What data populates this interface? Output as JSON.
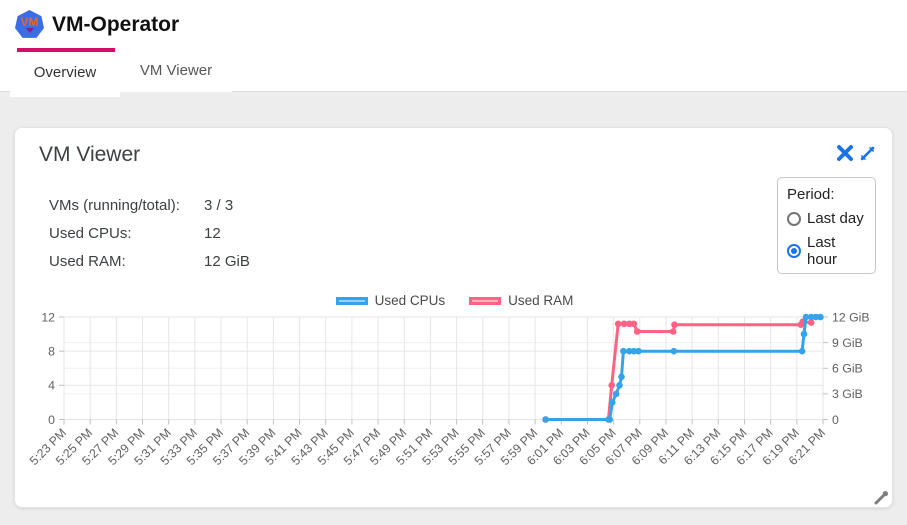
{
  "header": {
    "title": "VM-Operator",
    "logo_text": "VM"
  },
  "tabs": [
    {
      "label": "Overview",
      "active": true
    },
    {
      "label": "VM Viewer",
      "active": false
    }
  ],
  "card": {
    "title": "VM Viewer",
    "stats": [
      {
        "label": "VMs (running/total):",
        "value": "3 / 3"
      },
      {
        "label": "Used CPUs:",
        "value": "12"
      },
      {
        "label": "Used RAM:",
        "value": "12 GiB"
      }
    ],
    "period": {
      "label": "Period:",
      "options": [
        {
          "label": "Last day",
          "selected": false
        },
        {
          "label": "Last hour",
          "selected": true
        }
      ]
    }
  },
  "colors": {
    "accent_pink": "#cc1166",
    "icon_blue": "#1a73e8",
    "cpu_line": "#36a2eb",
    "cpu_fill": "#9ad0f5",
    "ram_line": "#ff6384",
    "ram_fill": "#ffb1c1",
    "grid": "#e6e6e6",
    "tick": "#c0c0c0",
    "axis_text": "#606060"
  },
  "chart_data": {
    "type": "line",
    "stepped": true,
    "title": "",
    "xlabel": "",
    "ylabel_left": "",
    "ylabel_right": "",
    "legend_position": "top",
    "grid": true,
    "x_labels": [
      "5:23 PM",
      "5:25 PM",
      "5:27 PM",
      "5:29 PM",
      "5:31 PM",
      "5:33 PM",
      "5:35 PM",
      "5:37 PM",
      "5:39 PM",
      "5:41 PM",
      "5:43 PM",
      "5:45 PM",
      "5:47 PM",
      "5:49 PM",
      "5:51 PM",
      "5:53 PM",
      "5:55 PM",
      "5:57 PM",
      "5:59 PM",
      "6:01 PM",
      "6:03 PM",
      "6:05 PM",
      "6:07 PM",
      "6:09 PM",
      "6:11 PM",
      "6:13 PM",
      "6:15 PM",
      "6:17 PM",
      "6:19 PM",
      "6:21 PM"
    ],
    "x_range_minutes": [
      0,
      58
    ],
    "y_left": {
      "ticks": [
        0,
        4,
        8,
        12
      ],
      "tick_labels": [
        "0",
        "4",
        "8",
        "12"
      ],
      "min": 0,
      "max": 12
    },
    "y_right": {
      "values": [
        0,
        3,
        6,
        9,
        12
      ],
      "tick_labels": [
        "0",
        "3 GiB",
        "6 GiB",
        "9 GiB",
        "12 GiB"
      ],
      "min": 0,
      "max": 12
    },
    "legend": [
      {
        "name": "Used CPUs",
        "line": "#36a2eb",
        "fill": "#9ad0f5"
      },
      {
        "name": "Used RAM",
        "line": "#ff6384",
        "fill": "#ffb1c1"
      }
    ],
    "series": [
      {
        "name": "Used RAM",
        "axis": "right",
        "unit": "GiB",
        "color": "#ff6384",
        "points": [
          [
            36.8,
            0
          ],
          [
            41.6,
            0
          ],
          [
            41.85,
            4
          ],
          [
            42.35,
            11.2
          ],
          [
            42.8,
            11.2
          ],
          [
            43.2,
            11.2
          ],
          [
            43.55,
            11.2
          ],
          [
            43.8,
            10.3
          ],
          [
            46.55,
            10.3
          ],
          [
            46.65,
            11.1
          ],
          [
            56.3,
            11.1
          ],
          [
            56.45,
            11.45
          ],
          [
            57.1,
            11.35
          ]
        ]
      },
      {
        "name": "Used CPUs",
        "axis": "left",
        "unit": "cores",
        "color": "#36a2eb",
        "points": [
          [
            36.8,
            0
          ],
          [
            41.7,
            0
          ],
          [
            41.9,
            2
          ],
          [
            42.2,
            3
          ],
          [
            42.45,
            4
          ],
          [
            42.6,
            5
          ],
          [
            42.75,
            8
          ],
          [
            43.2,
            8
          ],
          [
            43.55,
            8
          ],
          [
            43.9,
            8
          ],
          [
            46.6,
            8
          ],
          [
            56.4,
            8
          ],
          [
            56.55,
            10
          ],
          [
            56.7,
            12
          ],
          [
            57.1,
            12
          ],
          [
            57.45,
            12
          ],
          [
            57.8,
            12
          ]
        ]
      }
    ]
  }
}
